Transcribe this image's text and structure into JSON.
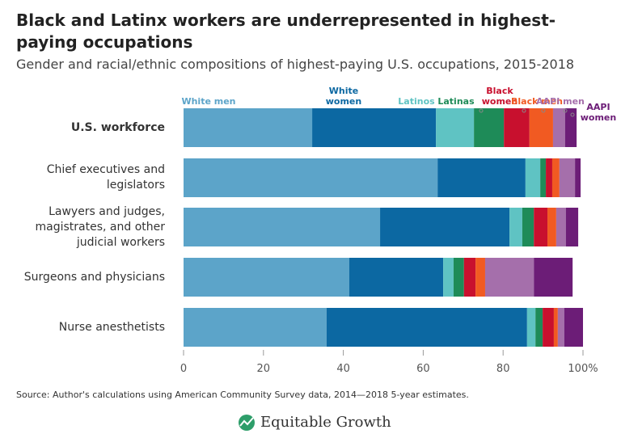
{
  "title": "Black and Latinx workers are underrepresented in highest-paying occupations",
  "subtitle": "Gender and racial/ethnic compositions of highest-paying U.S. occupations, 2015-2018",
  "chart_data": {
    "type": "bar",
    "orientation": "horizontal",
    "stacked": true,
    "categories": [
      "U.S. workforce",
      "Chief executives and legislators",
      "Lawyers and judges, magistrates, and other judicial workers",
      "Surgeons and physicians",
      "Nurse anesthetists"
    ],
    "series": [
      {
        "name": "White men",
        "color": "#5ca4c9",
        "values": [
          32.2,
          63.6,
          49.2,
          41.5,
          35.8
        ]
      },
      {
        "name": "White women",
        "color": "#0c68a2",
        "values": [
          31.0,
          22.0,
          32.4,
          23.5,
          50.2
        ]
      },
      {
        "name": "Latinos",
        "color": "#5fc3c3",
        "values": [
          9.5,
          3.7,
          3.2,
          2.6,
          2.1
        ]
      },
      {
        "name": "Latinas",
        "color": "#1e8b58",
        "values": [
          7.5,
          1.4,
          2.9,
          2.6,
          1.8
        ]
      },
      {
        "name": "Black women",
        "color": "#c8102e",
        "values": [
          6.4,
          1.6,
          3.4,
          2.9,
          2.8
        ]
      },
      {
        "name": "Black men",
        "color": "#f15a22",
        "values": [
          5.9,
          1.8,
          2.2,
          2.4,
          1.0
        ]
      },
      {
        "name": "AAPI men",
        "color": "#a56fab",
        "values": [
          3.0,
          3.9,
          2.4,
          12.2,
          1.6
        ]
      },
      {
        "name": "AAPI women",
        "color": "#6c1d77",
        "values": [
          2.9,
          1.4,
          3.1,
          9.7,
          4.7
        ]
      }
    ],
    "xlim": [
      0,
      100
    ],
    "xticks": [
      0,
      20,
      40,
      60,
      80,
      {
        "value": 100,
        "label": "100%"
      }
    ],
    "grid": false
  },
  "source": "Source: Author's calculations using American Community Survey data, 2014—2018 5-year estimates.",
  "brand": "Equitable Growth"
}
